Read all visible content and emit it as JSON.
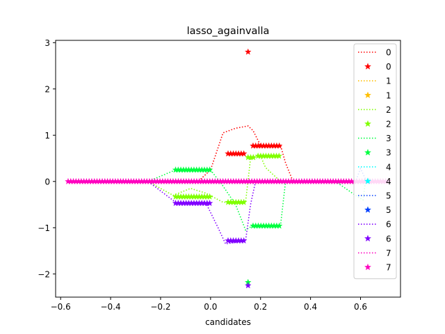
{
  "chart_data": {
    "type": "line",
    "title": "lasso_againvalla",
    "xlabel": "candidates",
    "ylabel": "",
    "xlim": [
      -0.62,
      0.76
    ],
    "ylim": [
      -2.5,
      3.05
    ],
    "xticks": [
      -0.6,
      -0.4,
      -0.2,
      0.0,
      0.2,
      0.4,
      0.6
    ],
    "xtick_labels": [
      "−0.6",
      "−0.4",
      "−0.2",
      "0.0",
      "0.2",
      "0.4",
      "0.6"
    ],
    "yticks": [
      -2,
      -1,
      0,
      1,
      2,
      3
    ],
    "ytick_labels": [
      "−2",
      "−1",
      "0",
      "1",
      "2",
      "3"
    ],
    "grid": false,
    "legend_position": "top-right",
    "legend_entries": [
      {
        "label": "0",
        "style": "line",
        "color": "#ff0000"
      },
      {
        "label": "0",
        "style": "star",
        "color": "#ff0000"
      },
      {
        "label": "1",
        "style": "line",
        "color": "#ffbf00"
      },
      {
        "label": "1",
        "style": "star",
        "color": "#ffbf00"
      },
      {
        "label": "2",
        "style": "line",
        "color": "#80ff00"
      },
      {
        "label": "2",
        "style": "star",
        "color": "#80ff00"
      },
      {
        "label": "3",
        "style": "line",
        "color": "#00ff40"
      },
      {
        "label": "3",
        "style": "star",
        "color": "#00ff40"
      },
      {
        "label": "4",
        "style": "line",
        "color": "#00ffff"
      },
      {
        "label": "4",
        "style": "star",
        "color": "#00ffff"
      },
      {
        "label": "5",
        "style": "line",
        "color": "#0040ff"
      },
      {
        "label": "5",
        "style": "star",
        "color": "#0040ff"
      },
      {
        "label": "6",
        "style": "line",
        "color": "#8000ff"
      },
      {
        "label": "6",
        "style": "star",
        "color": "#8000ff"
      },
      {
        "label": "7",
        "style": "line",
        "color": "#ff00bf"
      },
      {
        "label": "7",
        "style": "star",
        "color": "#ff00bf"
      }
    ],
    "series": [
      {
        "name": "0",
        "kind": "line",
        "color": "#ff0000",
        "points": [
          [
            -0.57,
            0
          ],
          [
            -0.05,
            0
          ],
          [
            0.0,
            0.25
          ],
          [
            0.05,
            1.05
          ],
          [
            0.1,
            1.15
          ],
          [
            0.15,
            1.2
          ],
          [
            0.17,
            1.1
          ],
          [
            0.2,
            0.78
          ],
          [
            0.28,
            0.78
          ],
          [
            0.3,
            0.4
          ],
          [
            0.33,
            0
          ],
          [
            0.72,
            0
          ]
        ]
      },
      {
        "name": "0",
        "kind": "stars",
        "color": "#ff0000",
        "clusters": [
          {
            "x": [
              0.07,
              0.14
            ],
            "y": 0.6
          },
          {
            "x": [
              0.15,
              0.16
            ],
            "y": 2.8
          },
          {
            "x": [
              0.17,
              0.28
            ],
            "y": 0.77
          }
        ]
      },
      {
        "name": "2",
        "kind": "line",
        "color": "#80ff00",
        "points": [
          [
            -0.57,
            0
          ],
          [
            -0.25,
            0
          ],
          [
            -0.15,
            -0.3
          ],
          [
            -0.08,
            -0.15
          ],
          [
            -0.02,
            -0.25
          ],
          [
            0.05,
            -0.45
          ],
          [
            0.14,
            -0.45
          ],
          [
            0.16,
            0.5
          ],
          [
            0.2,
            0.55
          ],
          [
            0.22,
            0.3
          ],
          [
            0.28,
            0
          ],
          [
            0.72,
            0
          ]
        ]
      },
      {
        "name": "2",
        "kind": "stars",
        "color": "#80ff00",
        "clusters": [
          {
            "x": [
              -0.14,
              0.0
            ],
            "y": -0.33
          },
          {
            "x": [
              0.07,
              0.14
            ],
            "y": -0.45
          },
          {
            "x": [
              0.15,
              0.18
            ],
            "y": 0.52
          },
          {
            "x": [
              0.19,
              0.28
            ],
            "y": 0.55
          }
        ]
      },
      {
        "name": "3",
        "kind": "line",
        "color": "#00ff40",
        "points": [
          [
            -0.57,
            0
          ],
          [
            -0.25,
            0
          ],
          [
            -0.14,
            0.25
          ],
          [
            0.0,
            0.25
          ],
          [
            0.05,
            -0.1
          ],
          [
            0.1,
            -0.5
          ],
          [
            0.14,
            -1.05
          ],
          [
            0.17,
            -0.95
          ],
          [
            0.28,
            -0.95
          ],
          [
            0.3,
            0
          ],
          [
            0.5,
            0
          ],
          [
            0.58,
            -0.3
          ],
          [
            0.61,
            -0.4
          ],
          [
            0.62,
            0
          ],
          [
            0.72,
            0
          ]
        ]
      },
      {
        "name": "3",
        "kind": "stars",
        "color": "#00ff40",
        "clusters": [
          {
            "x": [
              -0.14,
              0.0
            ],
            "y": 0.25
          },
          {
            "x": [
              0.15,
              0.16
            ],
            "y": -2.18
          },
          {
            "x": [
              0.17,
              0.28
            ],
            "y": -0.96
          }
        ]
      },
      {
        "name": "5",
        "kind": "line",
        "color": "#0040ff",
        "points": [
          [
            -0.57,
            0
          ],
          [
            0.58,
            0
          ],
          [
            0.6,
            0.28
          ],
          [
            0.62,
            0.05
          ],
          [
            0.72,
            0
          ]
        ]
      },
      {
        "name": "6",
        "kind": "line",
        "color": "#8000ff",
        "points": [
          [
            -0.57,
            0
          ],
          [
            -0.25,
            0
          ],
          [
            -0.14,
            -0.45
          ],
          [
            -0.02,
            -0.45
          ],
          [
            0.03,
            -1.0
          ],
          [
            0.06,
            -1.35
          ],
          [
            0.14,
            -1.28
          ],
          [
            0.16,
            -0.5
          ],
          [
            0.18,
            0
          ],
          [
            0.72,
            0
          ]
        ]
      },
      {
        "name": "6",
        "kind": "stars",
        "color": "#8000ff",
        "clusters": [
          {
            "x": [
              -0.14,
              0.0
            ],
            "y": -0.47
          },
          {
            "x": [
              0.07,
              0.14
            ],
            "y": -1.28
          },
          {
            "x": [
              0.15,
              0.16
            ],
            "y": -2.25
          }
        ]
      },
      {
        "name": "7",
        "kind": "line",
        "color": "#ff00bf",
        "points": [
          [
            -0.57,
            0
          ],
          [
            0.72,
            0
          ]
        ]
      },
      {
        "name": "7",
        "kind": "stars",
        "color": "#ff00bf",
        "clusters": [
          {
            "x": [
              -0.57,
              0.72
            ],
            "y": 0
          }
        ]
      }
    ]
  }
}
